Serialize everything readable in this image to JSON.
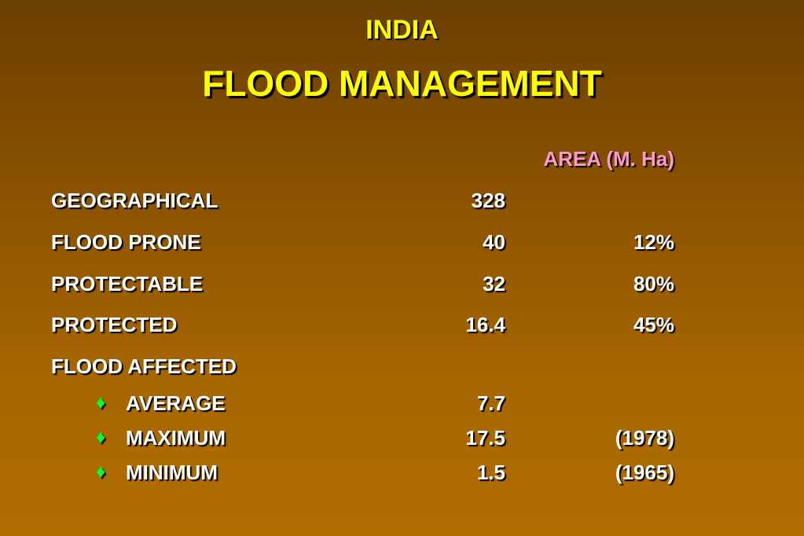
{
  "slide": {
    "title_line1": "INDIA",
    "title_line2": "FLOOD MANAGEMENT",
    "column_header": "AREA (M. Ha)"
  },
  "rows": [
    {
      "label": "GEOGRAPHICAL",
      "value": "328",
      "extra": ""
    },
    {
      "label": "FLOOD PRONE",
      "value": "40",
      "extra": "12%"
    },
    {
      "label": "PROTECTABLE",
      "value": "32",
      "extra": "80%"
    },
    {
      "label": "PROTECTED",
      "value": "16.4",
      "extra": "45%"
    },
    {
      "label": "FLOOD AFFECTED",
      "value": "",
      "extra": ""
    }
  ],
  "sub_rows": [
    {
      "bullet": "♦",
      "label": "AVERAGE",
      "value": "7.7",
      "extra": ""
    },
    {
      "bullet": "♦",
      "label": "MAXIMUM",
      "value": "17.5",
      "extra": "(1978)"
    },
    {
      "bullet": "♦",
      "label": "MINIMUM",
      "value": "1.5",
      "extra": "(1965)"
    }
  ],
  "colors": {
    "title": "#ffff00",
    "column_header": "#ff99cc",
    "bullet": "#00ff33",
    "body_text": "#ffffff",
    "background_top": "#6a3f00",
    "background_bottom": "#b06d00"
  }
}
